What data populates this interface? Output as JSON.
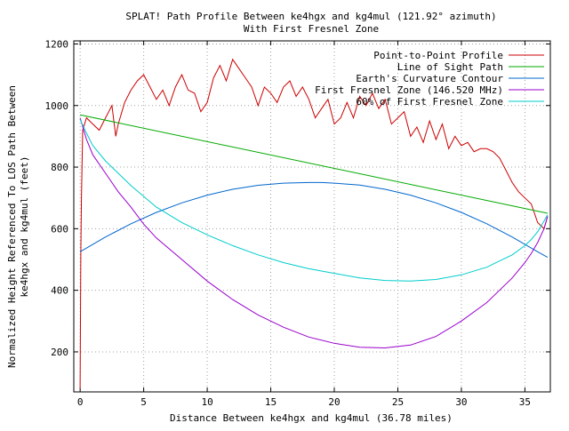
{
  "chart_data": {
    "type": "line",
    "title": "SPLAT! Path Profile Between ke4hgx and kg4mul (121.92° azimuth)",
    "subtitle": "With First Fresnel Zone",
    "xlabel": "Distance Between ke4hgx and kg4mul (36.78 miles)",
    "ylabel_line1": "Normalized Height Referenced To LOS Path Between",
    "ylabel_line2": "ke4hgx and kg4mul (feet)",
    "xlim": [
      -0.5,
      37.0
    ],
    "ylim": [
      70,
      1210
    ],
    "x_ticks": [
      0,
      5,
      10,
      15,
      20,
      25,
      30,
      35
    ],
    "y_ticks": [
      200,
      400,
      600,
      800,
      1000,
      1200
    ],
    "grid": true,
    "legend_position": "top-right",
    "series": [
      {
        "name": "Point-to-Point Profile",
        "color": "#cc0000",
        "x": [
          0,
          0.05,
          0.1,
          0.2,
          0.5,
          1.0,
          1.5,
          2.0,
          2.5,
          2.8,
          3.0,
          3.5,
          4.0,
          4.5,
          5.0,
          5.5,
          6.0,
          6.5,
          7.0,
          7.5,
          8.0,
          8.5,
          9.0,
          9.5,
          10.0,
          10.5,
          11.0,
          11.5,
          12.0,
          12.5,
          13.0,
          13.5,
          14.0,
          14.5,
          15.0,
          15.5,
          16.0,
          16.5,
          17.0,
          17.5,
          18.0,
          18.5,
          19.0,
          19.5,
          20.0,
          20.5,
          21.0,
          21.5,
          22.0,
          22.5,
          23.0,
          23.5,
          24.0,
          24.5,
          25.0,
          25.5,
          26.0,
          26.5,
          27.0,
          27.5,
          28.0,
          28.5,
          29.0,
          29.5,
          30.0,
          30.5,
          31.0,
          31.5,
          32.0,
          32.5,
          33.0,
          33.5,
          34.0,
          34.5,
          35.0,
          35.5,
          36.0,
          36.5,
          36.78
        ],
        "y": [
          80,
          520,
          700,
          920,
          960,
          940,
          920,
          960,
          1000,
          900,
          940,
          1010,
          1050,
          1080,
          1100,
          1060,
          1020,
          1050,
          1000,
          1060,
          1100,
          1050,
          1040,
          980,
          1010,
          1090,
          1130,
          1080,
          1150,
          1120,
          1090,
          1060,
          1000,
          1060,
          1040,
          1010,
          1060,
          1080,
          1030,
          1060,
          1020,
          960,
          990,
          1020,
          940,
          960,
          1010,
          960,
          1030,
          1000,
          1040,
          990,
          1020,
          940,
          960,
          980,
          900,
          930,
          880,
          950,
          890,
          940,
          860,
          900,
          870,
          880,
          850,
          860,
          860,
          850,
          830,
          790,
          750,
          720,
          700,
          680,
          620,
          600,
          640
        ]
      },
      {
        "name": "Line of Sight Path",
        "color": "#00aa00",
        "x": [
          0,
          36.78
        ],
        "y": [
          970,
          650
        ]
      },
      {
        "name": "Earth's Curvature Contour",
        "color": "#0066cc",
        "x": [
          0,
          2,
          4,
          6,
          8,
          10,
          12,
          14,
          16,
          18,
          19,
          20,
          22,
          24,
          26,
          28,
          30,
          32,
          34,
          36,
          36.78
        ],
        "y": [
          525,
          573,
          616,
          653,
          684,
          709,
          728,
          741,
          748,
          750,
          750,
          748,
          742,
          728,
          709,
          684,
          653,
          616,
          573,
          525,
          507
        ]
      },
      {
        "name": "First Fresnel Zone (146.520 MHz)",
        "color": "#9900cc",
        "x": [
          0,
          0.5,
          1,
          2,
          3,
          4,
          5,
          6,
          8,
          10,
          12,
          14,
          16,
          18,
          20,
          22,
          24,
          26,
          28,
          30,
          32,
          33,
          34,
          35,
          35.5,
          36,
          36.5,
          36.78
        ],
        "y": [
          960,
          890,
          840,
          780,
          720,
          670,
          615,
          570,
          500,
          430,
          370,
          320,
          280,
          248,
          228,
          215,
          213,
          222,
          250,
          300,
          360,
          400,
          440,
          490,
          520,
          555,
          600,
          640
        ]
      },
      {
        "name": "60% of First Fresnel Zone",
        "color": "#00cccc",
        "x": [
          0,
          0.5,
          1,
          2,
          3,
          4,
          5,
          6,
          8,
          10,
          12,
          14,
          16,
          18,
          20,
          22,
          24,
          26,
          28,
          30,
          32,
          33,
          34,
          35,
          35.5,
          36,
          36.5,
          36.78
        ],
        "y": [
          955,
          910,
          870,
          820,
          780,
          740,
          705,
          670,
          620,
          580,
          545,
          515,
          490,
          470,
          455,
          440,
          432,
          430,
          435,
          450,
          475,
          495,
          515,
          545,
          565,
          590,
          625,
          645
        ]
      }
    ]
  }
}
